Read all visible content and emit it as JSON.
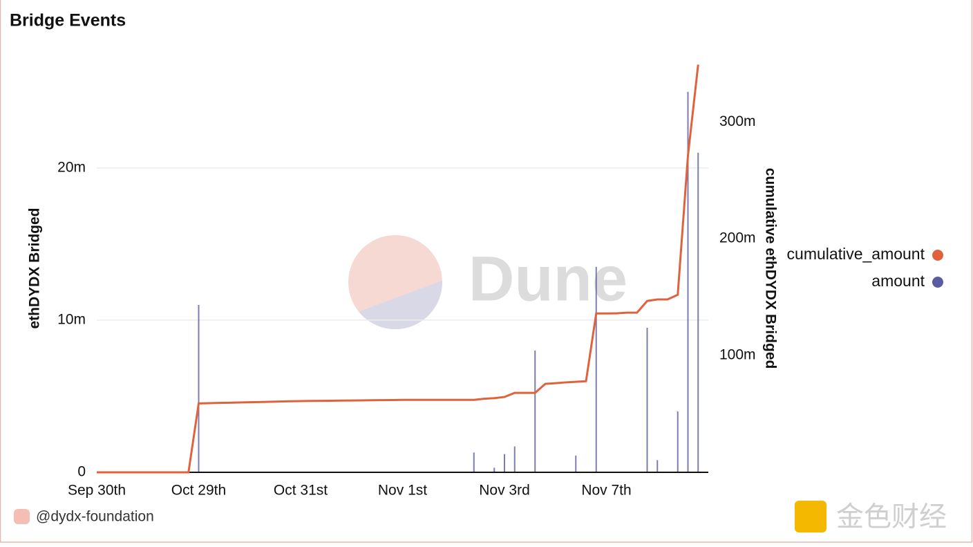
{
  "chart_data": {
    "type": "combo",
    "title": "Bridge Events",
    "watermark": "Dune",
    "footer": "@dydx-foundation",
    "corner_mark": "金色财经",
    "ylabel": "ethDYDX Bridged",
    "y2label": "cumulative ethDYDX Bridged",
    "categories": [
      "Sep 30th",
      null,
      null,
      null,
      null,
      null,
      null,
      null,
      null,
      null,
      "Oct 29th",
      null,
      null,
      null,
      null,
      null,
      null,
      null,
      null,
      null,
      "Oct 31st",
      null,
      null,
      null,
      null,
      null,
      null,
      null,
      null,
      null,
      "Nov 1st",
      null,
      null,
      null,
      null,
      null,
      null,
      null,
      null,
      null,
      "Nov 3rd",
      null,
      null,
      null,
      null,
      null,
      null,
      null,
      null,
      null,
      "Nov 7th",
      null,
      null,
      null,
      null,
      null,
      null,
      null,
      null,
      null
    ],
    "ylim": [
      0,
      27400000
    ],
    "yticks": [
      0,
      {
        "value": 10000000,
        "label": "10m"
      },
      {
        "value": 20000000,
        "label": "20m"
      }
    ],
    "y2lim": [
      0,
      357000000
    ],
    "y2ticks": [
      {
        "value": 100000000,
        "label": "100m"
      },
      {
        "value": 200000000,
        "label": "200m"
      },
      {
        "value": 300000000,
        "label": "300m"
      }
    ],
    "grid": true,
    "legend": "right",
    "series": [
      {
        "name": "cumulative_amount",
        "type": "line",
        "axis": "y2",
        "color": "#e0623d",
        "values": [
          0,
          0,
          0,
          0,
          0,
          0,
          0,
          0,
          0,
          0,
          59000000,
          59200000,
          59400000,
          59600000,
          59800000,
          60000000,
          60200000,
          60400000,
          60600000,
          60800000,
          61000000,
          61100000,
          61200000,
          61300000,
          61400000,
          61500000,
          61600000,
          61700000,
          61800000,
          61900000,
          62000000,
          62000000,
          62000000,
          62000000,
          62000000,
          62000000,
          62000000,
          62000000,
          63000000,
          63500000,
          64500000,
          68000000,
          68000000,
          68000000,
          75700000,
          76300000,
          77000000,
          77500000,
          78000000,
          136000000,
          136000000,
          136100000,
          136700000,
          136700000,
          146700000,
          148000000,
          148000000,
          152000000,
          271000000,
          349000000
        ]
      },
      {
        "name": "amount",
        "type": "bar",
        "axis": "y",
        "color": "#5b5ba0",
        "values": [
          0,
          0,
          0,
          0,
          0,
          0,
          0,
          0,
          0,
          0,
          11000000,
          0,
          0,
          0,
          0,
          0,
          0,
          0,
          0,
          0,
          0,
          0,
          0,
          0,
          0,
          0,
          0,
          0,
          0,
          0,
          0,
          0,
          0,
          0,
          0,
          0,
          0,
          1300000,
          0,
          300000,
          1200000,
          1700000,
          0,
          8000000,
          0,
          0,
          0,
          1100000,
          0,
          13500000,
          0,
          0,
          0,
          0,
          9500000,
          800000,
          0,
          4000000,
          25000000,
          21000000
        ]
      }
    ]
  }
}
